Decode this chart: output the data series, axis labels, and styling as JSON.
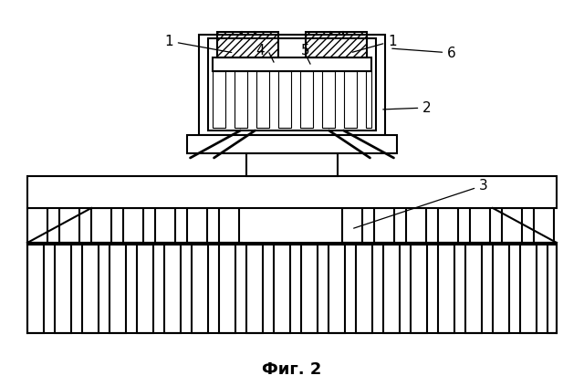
{
  "title": "Фиг. 2",
  "title_fontsize": 13,
  "background_color": "#ffffff",
  "line_color": "#000000",
  "lw": 1.5,
  "fig_width": 6.4,
  "fig_height": 4.23
}
